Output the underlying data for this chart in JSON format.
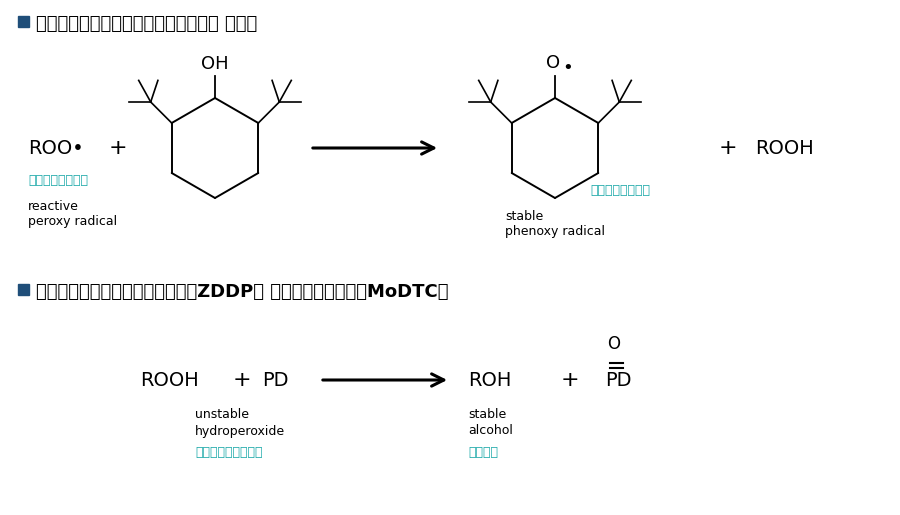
{
  "title1": "主抗氧剂（受阻酚类，烷基化二苯胺， 茱胺）",
  "title2": "辅助抗氧剂（二烷基二硫代磷酸锂ZDDP， 二烷基二硫代甲酸鑢MoDTC）",
  "roo_label": "ROO•",
  "plus1": "+",
  "plus2": "+",
  "rooh_label": "ROOH",
  "label_reactive_cn": "活泼的过氧自由基",
  "label_reactive_en1": "reactive",
  "label_reactive_en2": "peroxy radical",
  "label_stable_phenoxy_cn": "稳定的苯氧自由基",
  "label_stable_phenoxy_en1": "stable",
  "label_stable_phenoxy_en2": "phenoxy radical",
  "rooh2": "ROOH",
  "pd1": "PD",
  "roh": "ROH",
  "plus3": "+",
  "pd2": "PD",
  "o_label": "O",
  "label_unstable_en1": "unstable",
  "label_unstable_en2": "hydroperoxide",
  "label_unstable_cn": "不稳定的氢过氧化物",
  "label_stable_alc_en1": "stable",
  "label_stable_alc_en2": "alcohol",
  "label_stable_alc_cn": "稳定的醇",
  "cn_color": "#19A8A8",
  "bg_color": "#FFFFFF",
  "text_color": "#000000",
  "title_color": "#000000",
  "bullet_color": "#1F4E79"
}
